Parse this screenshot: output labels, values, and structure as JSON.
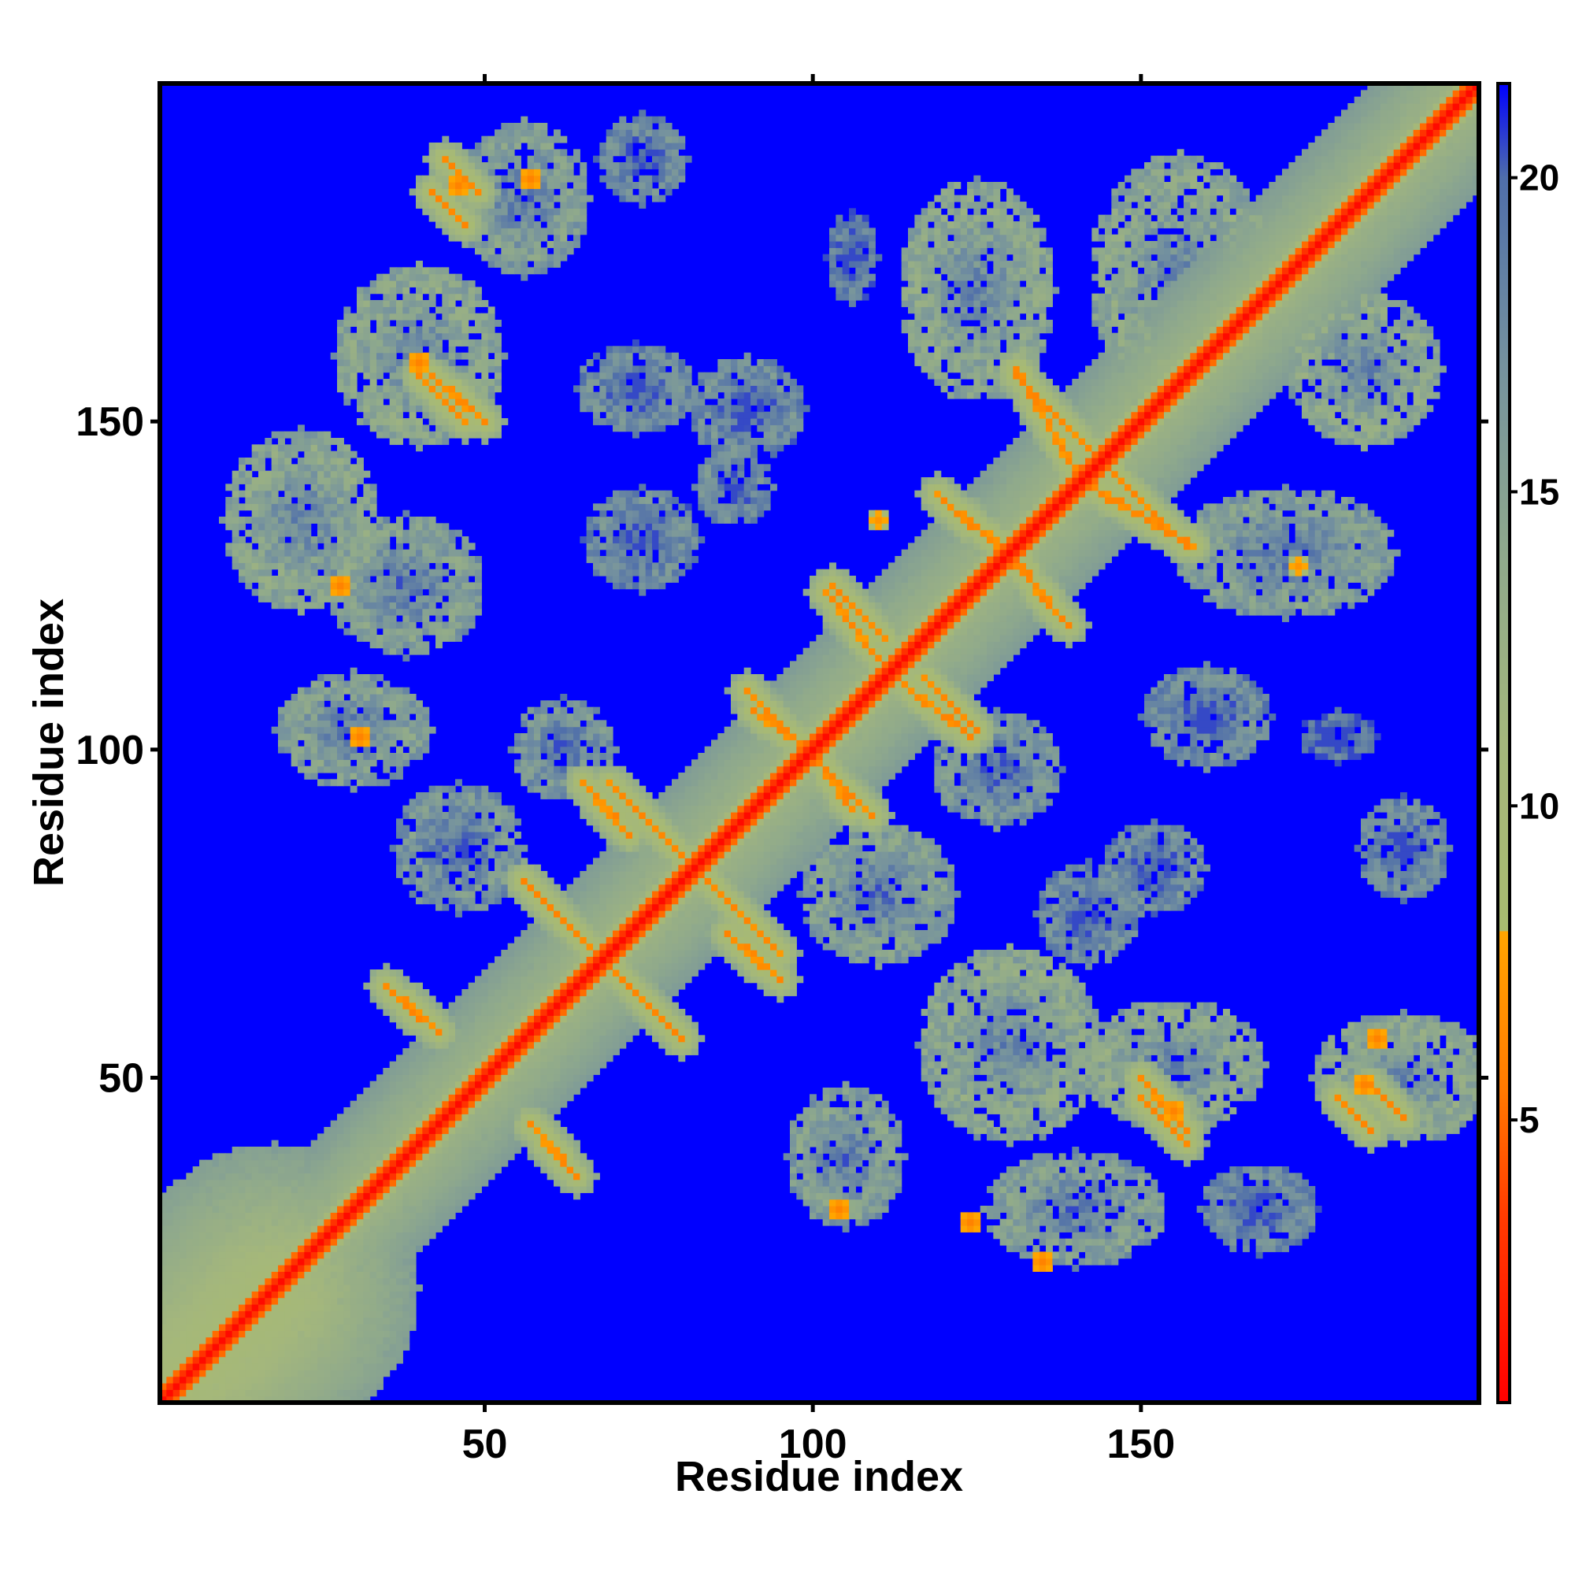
{
  "chart_data": {
    "type": "heatmap",
    "title": "",
    "xlabel": "Residue index",
    "ylabel": "Residue index",
    "xlim": [
      1,
      201
    ],
    "ylim": [
      1,
      201
    ],
    "x_ticks": [
      50,
      100,
      150
    ],
    "y_ticks": [
      50,
      100,
      150
    ],
    "colorbar": {
      "range": [
        0.5,
        21.5
      ],
      "ticks": [
        5,
        10,
        15,
        20
      ],
      "stops": [
        {
          "value": 0.5,
          "color": "#ff0000"
        },
        {
          "value": 3.5,
          "color": "#ff3c00"
        },
        {
          "value": 5.5,
          "color": "#ff7a00"
        },
        {
          "value": 8.0,
          "color": "#ffa500"
        },
        {
          "value": 8.01,
          "color": "#a9bb6f"
        },
        {
          "value": 11.0,
          "color": "#a4b77c"
        },
        {
          "value": 14.0,
          "color": "#8fa98c"
        },
        {
          "value": 17.0,
          "color": "#75929e"
        },
        {
          "value": 20.0,
          "color": "#4f6eaa"
        },
        {
          "value": 21.5,
          "color": "#0000ff"
        }
      ]
    },
    "background_value": 21.5,
    "bands": [
      {
        "i1": 1,
        "j1": 1,
        "i2": 201,
        "j2": 201,
        "width": 3,
        "value": 3
      },
      {
        "i1": 1,
        "j1": 1,
        "i2": 201,
        "j2": 201,
        "width": 12,
        "value": 11
      },
      {
        "i1": 1,
        "j1": 1,
        "i2": 18,
        "j2": 18,
        "width": 22,
        "value": 9
      },
      {
        "i1": 56,
        "j1": 80,
        "i2": 67,
        "j2": 69,
        "width": 3,
        "value": 6
      },
      {
        "i1": 80,
        "j1": 56,
        "i2": 69,
        "j2": 67,
        "width": 3,
        "value": 6
      },
      {
        "i1": 69,
        "j1": 95,
        "i2": 80,
        "j2": 84,
        "width": 3,
        "value": 6
      },
      {
        "i1": 95,
        "j1": 69,
        "i2": 84,
        "j2": 80,
        "width": 3,
        "value": 6
      },
      {
        "i1": 87,
        "j1": 72,
        "i2": 95,
        "j2": 65,
        "width": 3,
        "value": 6
      },
      {
        "i1": 72,
        "j1": 87,
        "i2": 65,
        "j2": 95,
        "width": 3,
        "value": 6
      },
      {
        "i1": 103,
        "j1": 125,
        "i2": 111,
        "j2": 117,
        "width": 3,
        "value": 6
      },
      {
        "i1": 125,
        "j1": 103,
        "i2": 117,
        "j2": 111,
        "width": 3,
        "value": 6
      },
      {
        "i1": 90,
        "j1": 109,
        "i2": 100,
        "j2": 99,
        "width": 3,
        "value": 6
      },
      {
        "i1": 109,
        "j1": 90,
        "i2": 99,
        "j2": 100,
        "width": 3,
        "value": 6
      },
      {
        "i1": 114,
        "j1": 110,
        "i2": 124,
        "j2": 102,
        "width": 3,
        "value": 6
      },
      {
        "i1": 110,
        "j1": 114,
        "i2": 102,
        "j2": 124,
        "width": 3,
        "value": 6
      },
      {
        "i1": 131,
        "j1": 157,
        "i2": 142,
        "j2": 146,
        "width": 3,
        "value": 6
      },
      {
        "i1": 157,
        "j1": 131,
        "i2": 146,
        "j2": 142,
        "width": 3,
        "value": 6
      },
      {
        "i1": 119,
        "j1": 139,
        "i2": 128,
        "j2": 131,
        "width": 3,
        "value": 6
      },
      {
        "i1": 139,
        "j1": 119,
        "i2": 131,
        "j2": 128,
        "width": 3,
        "value": 6
      },
      {
        "i1": 141,
        "j1": 141,
        "i2": 158,
        "j2": 131,
        "width": 3,
        "value": 6
      },
      {
        "i1": 141,
        "j1": 141,
        "i2": 131,
        "j2": 158,
        "width": 3,
        "value": 6
      },
      {
        "i1": 130,
        "j1": 130,
        "i2": 138,
        "j2": 120,
        "width": 3,
        "value": 6
      },
      {
        "i1": 130,
        "j1": 130,
        "i2": 120,
        "j2": 138,
        "width": 3,
        "value": 6
      },
      {
        "i1": 99,
        "j1": 101,
        "i2": 106,
        "j2": 91,
        "width": 3,
        "value": 6
      },
      {
        "i1": 101,
        "j1": 99,
        "i2": 91,
        "j2": 106,
        "width": 3,
        "value": 6
      },
      {
        "i1": 68,
        "j1": 68,
        "i2": 80,
        "j2": 56,
        "width": 3,
        "value": 6
      },
      {
        "i1": 68,
        "j1": 68,
        "i2": 56,
        "j2": 80,
        "width": 3,
        "value": 6
      },
      {
        "i1": 35,
        "j1": 64,
        "i2": 43,
        "j2": 57,
        "width": 3,
        "value": 6
      },
      {
        "i1": 64,
        "j1": 35,
        "i2": 57,
        "j2": 43,
        "width": 3,
        "value": 6
      },
      {
        "i1": 42,
        "j1": 157,
        "i2": 50,
        "j2": 150,
        "width": 3,
        "value": 6
      },
      {
        "i1": 157,
        "j1": 42,
        "i2": 150,
        "j2": 50,
        "width": 3,
        "value": 6
      },
      {
        "i1": 42,
        "j1": 185,
        "i2": 47,
        "j2": 180,
        "width": 3,
        "value": 6
      },
      {
        "i1": 185,
        "j1": 42,
        "i2": 180,
        "j2": 47,
        "width": 3,
        "value": 6
      },
      {
        "i1": 150,
        "j1": 47,
        "i2": 157,
        "j2": 40,
        "width": 3,
        "value": 6
      },
      {
        "i1": 47,
        "j1": 150,
        "i2": 40,
        "j2": 157,
        "width": 3,
        "value": 6
      },
      {
        "i1": 185,
        "j1": 49,
        "i2": 190,
        "j2": 44,
        "width": 3,
        "value": 6
      },
      {
        "i1": 49,
        "j1": 185,
        "i2": 44,
        "j2": 190,
        "width": 3,
        "value": 6
      }
    ],
    "blobs": [
      {
        "x": 40,
        "y": 160,
        "rx": 13,
        "ry": 14,
        "value": 12
      },
      {
        "x": 56,
        "y": 184,
        "rx": 10,
        "ry": 12,
        "value": 13
      },
      {
        "x": 22,
        "y": 135,
        "rx": 12,
        "ry": 14,
        "value": 12
      },
      {
        "x": 38,
        "y": 125,
        "rx": 12,
        "ry": 11,
        "value": 13
      },
      {
        "x": 30,
        "y": 103,
        "rx": 12,
        "ry": 9,
        "value": 13
      },
      {
        "x": 74,
        "y": 190,
        "rx": 7,
        "ry": 7,
        "value": 15
      },
      {
        "x": 73,
        "y": 155,
        "rx": 9,
        "ry": 7,
        "value": 15
      },
      {
        "x": 90,
        "y": 152,
        "rx": 9,
        "ry": 8,
        "value": 15
      },
      {
        "x": 74,
        "y": 132,
        "rx": 9,
        "ry": 8,
        "value": 15
      },
      {
        "x": 106,
        "y": 175,
        "rx": 4,
        "ry": 7,
        "value": 16
      },
      {
        "x": 125,
        "y": 170,
        "rx": 12,
        "ry": 17,
        "value": 12
      },
      {
        "x": 156,
        "y": 172,
        "rx": 14,
        "ry": 19,
        "value": 12
      },
      {
        "x": 184,
        "y": 158,
        "rx": 12,
        "ry": 12,
        "value": 12
      },
      {
        "x": 172,
        "y": 130,
        "rx": 17,
        "ry": 10,
        "value": 13
      },
      {
        "x": 160,
        "y": 105,
        "rx": 10,
        "ry": 8,
        "value": 15
      },
      {
        "x": 180,
        "y": 102,
        "rx": 6,
        "ry": 4,
        "value": 17
      },
      {
        "x": 152,
        "y": 82,
        "rx": 8,
        "ry": 7,
        "value": 15
      },
      {
        "x": 190,
        "y": 85,
        "rx": 7,
        "ry": 8,
        "value": 15
      },
      {
        "x": 142,
        "y": 75,
        "rx": 8,
        "ry": 8,
        "value": 15
      },
      {
        "x": 110,
        "y": 78,
        "rx": 12,
        "ry": 11,
        "value": 13
      },
      {
        "x": 130,
        "y": 55,
        "rx": 14,
        "ry": 15,
        "value": 12
      },
      {
        "x": 155,
        "y": 52,
        "rx": 14,
        "ry": 10,
        "value": 12
      },
      {
        "x": 190,
        "y": 50,
        "rx": 14,
        "ry": 10,
        "value": 12
      },
      {
        "x": 105,
        "y": 38,
        "rx": 9,
        "ry": 11,
        "value": 13
      },
      {
        "x": 140,
        "y": 30,
        "rx": 14,
        "ry": 9,
        "value": 13
      },
      {
        "x": 168,
        "y": 30,
        "rx": 9,
        "ry": 7,
        "value": 15
      },
      {
        "x": 128,
        "y": 97,
        "rx": 10,
        "ry": 9,
        "value": 14
      },
      {
        "x": 46,
        "y": 85,
        "rx": 10,
        "ry": 10,
        "value": 14
      },
      {
        "x": 88,
        "y": 140,
        "rx": 6,
        "ry": 6,
        "value": 15
      },
      {
        "x": 62,
        "y": 100,
        "rx": 8,
        "ry": 8,
        "value": 14
      }
    ],
    "hotspots": [
      {
        "x": 46,
        "y": 186,
        "value": 6
      },
      {
        "x": 57,
        "y": 187,
        "value": 6
      },
      {
        "x": 40,
        "y": 159,
        "value": 6
      },
      {
        "x": 28,
        "y": 125,
        "value": 6
      },
      {
        "x": 31,
        "y": 102,
        "value": 6
      },
      {
        "x": 104,
        "y": 30,
        "value": 6
      },
      {
        "x": 124,
        "y": 28,
        "value": 6
      },
      {
        "x": 184,
        "y": 49,
        "value": 6
      },
      {
        "x": 155,
        "y": 45,
        "value": 6
      },
      {
        "x": 135,
        "y": 22,
        "value": 6
      },
      {
        "x": 110,
        "y": 135,
        "value": 7
      },
      {
        "x": 186,
        "y": 56,
        "value": 6
      },
      {
        "x": 174,
        "y": 128,
        "value": 7
      }
    ]
  }
}
